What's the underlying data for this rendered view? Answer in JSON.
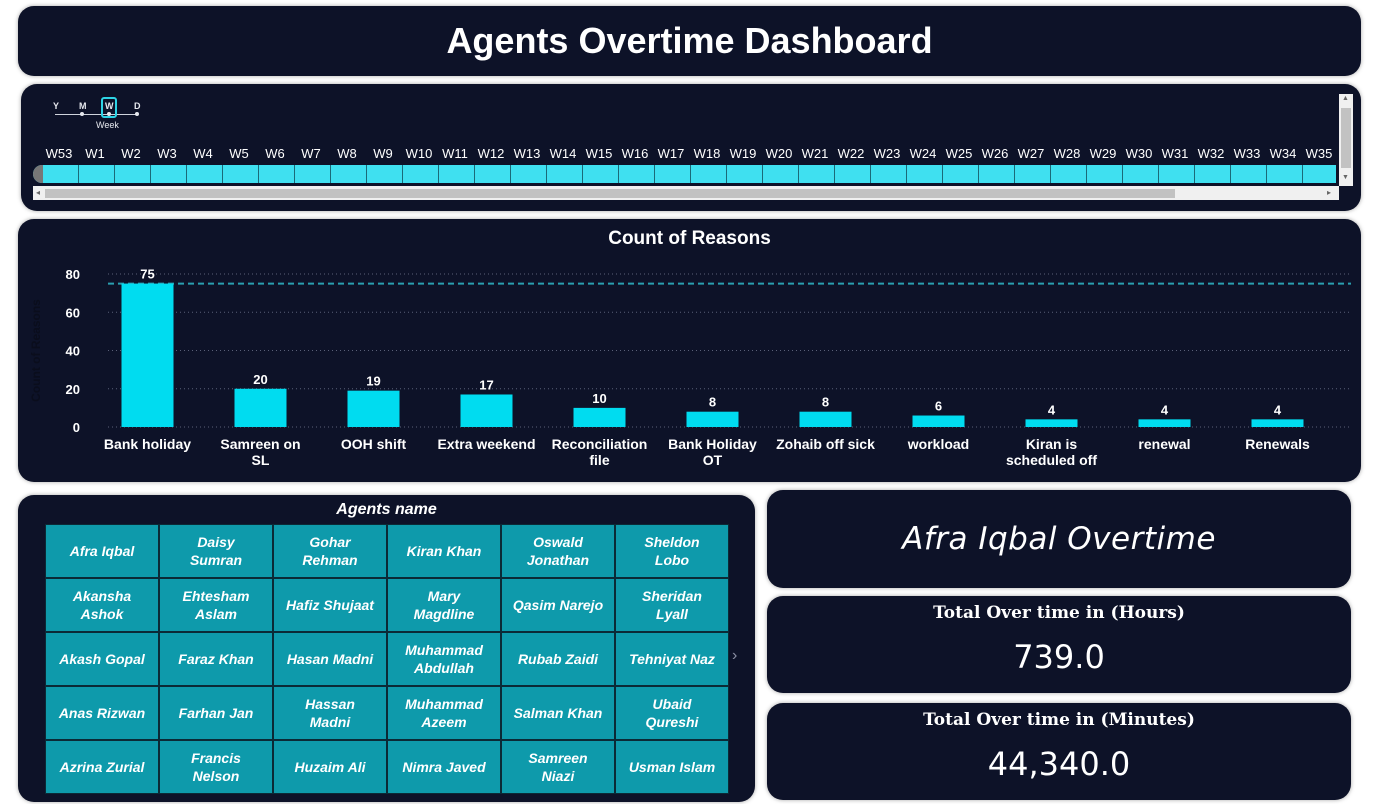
{
  "header": {
    "title": "Agents Overtime Dashboard"
  },
  "timeline": {
    "granularity_levels": [
      "Y",
      "M",
      "W",
      "D"
    ],
    "selected_granularity": "W",
    "granularity_label": "Week",
    "weeks": [
      "W53",
      "W1",
      "W2",
      "W3",
      "W4",
      "W5",
      "W6",
      "W7",
      "W8",
      "W9",
      "W10",
      "W11",
      "W12",
      "W13",
      "W14",
      "W15",
      "W16",
      "W17",
      "W18",
      "W19",
      "W20",
      "W21",
      "W22",
      "W23",
      "W24",
      "W25",
      "W26",
      "W27",
      "W28",
      "W29",
      "W30",
      "W31",
      "W32",
      "W33",
      "W34",
      "W35"
    ],
    "highlight_color": "#3fe0f0"
  },
  "chart_data": {
    "type": "bar",
    "title": "Count of Reasons",
    "ylabel": "Count of Reasons",
    "xlabel": "",
    "categories": [
      "Bank holiday",
      "Samreen on SL",
      "OOH shift",
      "Extra weekend",
      "Reconciliation file",
      "Bank Holiday OT",
      "Zohaib off sick",
      "workload",
      "Kiran is scheduled off",
      "renewal",
      "Renewals"
    ],
    "category_lines": [
      [
        "Bank holiday"
      ],
      [
        "Samreen on",
        "SL"
      ],
      [
        "OOH shift"
      ],
      [
        "Extra weekend"
      ],
      [
        "Reconciliation",
        "file"
      ],
      [
        "Bank Holiday",
        "OT"
      ],
      [
        "Zohaib off sick"
      ],
      [
        "workload"
      ],
      [
        "Kiran is",
        "scheduled off"
      ],
      [
        "renewal"
      ],
      [
        "Renewals"
      ]
    ],
    "values": [
      75,
      20,
      19,
      17,
      10,
      8,
      8,
      6,
      4,
      4,
      4
    ],
    "ylim": [
      0,
      80
    ],
    "yticks": [
      0,
      20,
      40,
      60,
      80
    ],
    "reference_line": 75,
    "bar_color": "#00dcf0",
    "grid": true,
    "legend": "none"
  },
  "agents": {
    "title": "Agents name",
    "names": [
      "Afra Iqbal",
      "Daisy Sumran",
      "Gohar Rehman",
      "Kiran Khan",
      "Oswald Jonathan",
      "Sheldon Lobo",
      "Akansha Ashok",
      "Ehtesham Aslam",
      "Hafiz Shujaat",
      "Mary Magdline",
      "Qasim Narejo",
      "Sheridan Lyall",
      "Akash Gopal",
      "Faraz Khan",
      "Hasan Madni",
      "Muhammad Abdullah",
      "Rubab Zaidi",
      "Tehniyat Naz",
      "Anas Rizwan",
      "Farhan Jan",
      "Hassan Madni",
      "Muhammad Azeem",
      "Salman Khan",
      "Ubaid Qureshi",
      "Azrina Zurial",
      "Francis Nelson",
      "Huzaim Ali",
      "Nimra Javed",
      "Samreen Niazi",
      "Usman Islam"
    ]
  },
  "selected_agent_card": {
    "title": "Afra Iqbal Overtime"
  },
  "kpis": {
    "hours": {
      "label": "Total Over time in (Hours)",
      "value": "739.0"
    },
    "minutes": {
      "label": "Total Over time in (Minutes)",
      "value": "44,340.0"
    }
  }
}
